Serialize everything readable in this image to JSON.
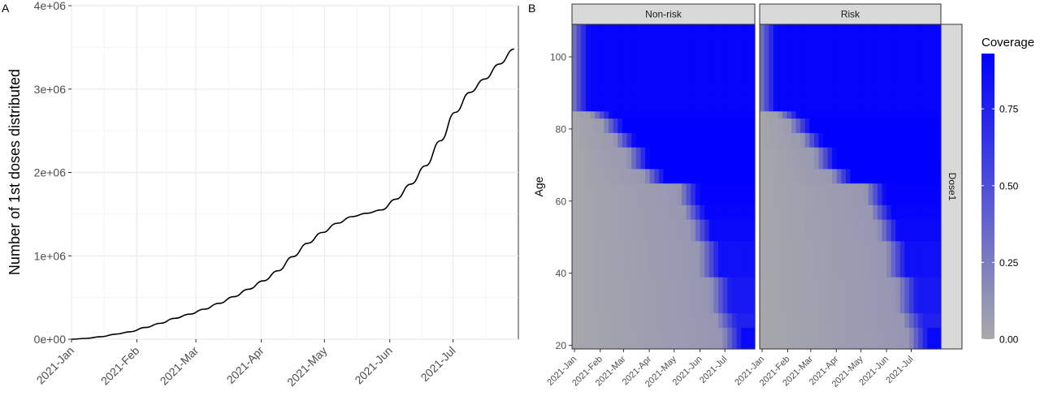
{
  "chart_data": [
    {
      "panel": "A",
      "type": "line",
      "ylabel": "Number of 1st doses distributed",
      "xlabel": "",
      "ylim": [
        0,
        4000000
      ],
      "y_ticks": [
        "0e+00",
        "1e+06",
        "2e+06",
        "3e+06",
        "4e+06"
      ],
      "x_ticks": [
        "2021-Jan",
        "2021-Feb",
        "2021-Mar",
        "2021-Apr",
        "2021-May",
        "2021-Jun",
        "2021-Jul"
      ],
      "grid": true,
      "series": [
        {
          "x": [
            "2021-01-01",
            "2021-01-08",
            "2021-01-15",
            "2021-01-22",
            "2021-01-29",
            "2021-02-05",
            "2021-02-12",
            "2021-02-19",
            "2021-02-26",
            "2021-03-05",
            "2021-03-12",
            "2021-03-19",
            "2021-03-26",
            "2021-04-02",
            "2021-04-09",
            "2021-04-16",
            "2021-04-23",
            "2021-04-30",
            "2021-05-07",
            "2021-05-14",
            "2021-05-21",
            "2021-05-28",
            "2021-06-04",
            "2021-06-11",
            "2021-06-18",
            "2021-06-25",
            "2021-07-02",
            "2021-07-09",
            "2021-07-16",
            "2021-07-23",
            "2021-07-30"
          ],
          "y": [
            0,
            10000,
            30000,
            60000,
            90000,
            140000,
            190000,
            250000,
            300000,
            360000,
            430000,
            510000,
            600000,
            700000,
            820000,
            990000,
            1150000,
            1280000,
            1390000,
            1470000,
            1510000,
            1550000,
            1680000,
            1860000,
            2080000,
            2380000,
            2720000,
            2960000,
            3120000,
            3300000,
            3480000
          ]
        }
      ]
    },
    {
      "panel": "B",
      "type": "heatmap",
      "facets": [
        "Non-risk",
        "Risk"
      ],
      "row_strip": "Dose1",
      "ylabel": "Age",
      "y_ticks": [
        20,
        40,
        60,
        80,
        100
      ],
      "ylim": [
        19,
        109
      ],
      "x_ticks": [
        "2021-Jan",
        "2021-Feb",
        "2021-Mar",
        "2021-Apr",
        "2021-May",
        "2021-Jun",
        "2021-Jul"
      ],
      "legend": {
        "title": "Coverage",
        "ticks": [
          "0.00",
          "0.25",
          "0.50",
          "0.75"
        ],
        "range": [
          0,
          0.93
        ],
        "low_color": "#aaaaaa",
        "high_color": "#0000ff",
        "placement": "right"
      },
      "reached_coverage_date_by_age": [
        {
          "age_min": 86,
          "age_max": 109,
          "date": "2021-01-18",
          "max_coverage": 0.9
        },
        {
          "age_min": 84,
          "age_max": 86,
          "date": "2021-02-15",
          "max_coverage": 0.92
        },
        {
          "age_min": 79,
          "age_max": 84,
          "date": "2021-03-01",
          "max_coverage": 0.93
        },
        {
          "age_min": 75,
          "age_max": 79,
          "date": "2021-03-15",
          "max_coverage": 0.93
        },
        {
          "age_min": 70,
          "age_max": 75,
          "date": "2021-03-31",
          "max_coverage": 0.93
        },
        {
          "age_min": 65,
          "age_max": 70,
          "date": "2021-04-20",
          "max_coverage": 0.93
        },
        {
          "age_min": 60,
          "age_max": 65,
          "date": "2021-05-31",
          "max_coverage": 0.92
        },
        {
          "age_min": 55,
          "age_max": 60,
          "date": "2021-06-07",
          "max_coverage": 0.9
        },
        {
          "age_min": 50,
          "age_max": 55,
          "date": "2021-06-15",
          "max_coverage": 0.88
        },
        {
          "age_min": 40,
          "age_max": 50,
          "date": "2021-06-25",
          "max_coverage": 0.85
        },
        {
          "age_min": 30,
          "age_max": 40,
          "date": "2021-07-08",
          "max_coverage": 0.8
        },
        {
          "age_min": 25,
          "age_max": 30,
          "date": "2021-07-15",
          "max_coverage": 0.75
        },
        {
          "age_min": 19,
          "age_max": 25,
          "date": "2021-07-22",
          "max_coverage": 0.88
        }
      ]
    }
  ],
  "labels": {
    "panel_a": "A",
    "panel_b": "B"
  }
}
